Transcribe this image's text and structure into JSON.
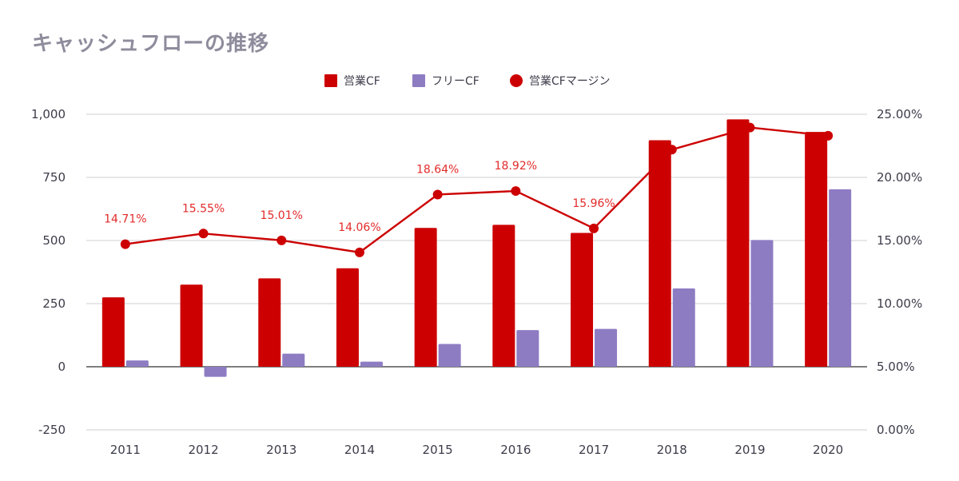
{
  "chart_data": {
    "type": "bar",
    "title": "キャッシュフローの推移",
    "categories": [
      "2011",
      "2012",
      "2013",
      "2014",
      "2015",
      "2016",
      "2017",
      "2018",
      "2019",
      "2020"
    ],
    "series": [
      {
        "name": "営業CF",
        "kind": "bar",
        "axis": "left",
        "color": "#cc0000",
        "values": [
          275,
          325,
          350,
          390,
          550,
          562,
          530,
          897,
          980,
          930
        ]
      },
      {
        "name": "フリーCF",
        "kind": "bar",
        "axis": "left",
        "color": "#8e7cc3",
        "values": [
          25,
          -40,
          52,
          20,
          90,
          145,
          150,
          310,
          502,
          703
        ]
      },
      {
        "name": "営業CFマージン",
        "kind": "line",
        "axis": "right",
        "color": "#cc0000",
        "values": [
          14.71,
          15.55,
          15.01,
          14.06,
          18.64,
          18.92,
          15.96,
          22.2,
          23.95,
          23.3
        ],
        "data_labels": [
          "14.71%",
          "15.55%",
          "15.01%",
          "14.06%",
          "18.64%",
          "18.92%",
          "15.96%",
          "",
          "",
          ""
        ]
      }
    ],
    "left_axis": {
      "ylim": [
        -250,
        1000
      ],
      "ticks": [
        "-250",
        "0",
        "250",
        "500",
        "750",
        "1,000"
      ],
      "tick_values": [
        -250,
        0,
        250,
        500,
        750,
        1000
      ]
    },
    "right_axis": {
      "ylim": [
        0,
        25
      ],
      "ticks": [
        "0.00%",
        "5.00%",
        "10.00%",
        "15.00%",
        "20.00%",
        "25.00%"
      ],
      "tick_values": [
        0,
        5,
        10,
        15,
        20,
        25
      ]
    },
    "legend": {
      "position": "top-center",
      "entries": [
        "営業CF",
        "フリーCF",
        "営業CFマージン"
      ]
    },
    "label_color": "#e32b2b",
    "grid": true
  }
}
